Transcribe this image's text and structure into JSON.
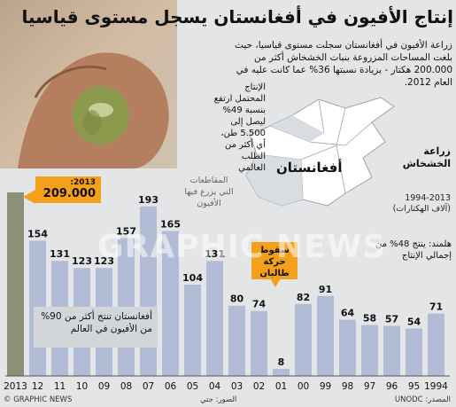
{
  "title": "إنتاج الأفيون في أفغانستان يسجل مستوى قياسيا",
  "intro_text": "زراعة الأفيون في أفغانستان سجلت مستوى قياسيا، حيث بلغت المساحات المزروعة بنبات الخشخاش أكثر من 200.000 هكتار - بزيادة نسبتها 36% عما كانت عليه في العام 2012.",
  "potential_text": "الإنتاج المحتمل ارتفع بنسبة 49% ليصل إلى 5.500 طن، أي أكثر من الطلب العالمي",
  "map_label": "أفغانستان",
  "regions_label": "المقاطعات التي يزرع فيها الأفيون",
  "cultivation_title": "زراعة الخشخاش",
  "cultivation_years": "1994-2013",
  "cultivation_unit": "(آلاف الهكتارات)",
  "helmand_note": "هلمند: ينتج 48% من إجمالي الإنتاج",
  "callout_2013_year": "2013:",
  "callout_2013_value": "209.000",
  "taliban_note": "سقوط حركة طالبان",
  "global_note": "أفغانستان تنتج أكثر من 90% من الأفيون في العالم",
  "source_label": "المصدر: UNODC",
  "photo_credit": "الصور: جتي",
  "copyright": "© GRAPHIC NEWS",
  "watermark": "GRAPHIC NEWS",
  "colors": {
    "bar": "#b3bcd6",
    "bar_highlight": "#8a9178",
    "callout": "#f5a01a",
    "text_white": "#ffffff"
  },
  "chart_data": {
    "type": "bar",
    "title": "زراعة الخشخاش",
    "ylabel": "(آلاف الهكتارات)",
    "categories": [
      "2013",
      "12",
      "11",
      "10",
      "09",
      "08",
      "07",
      "06",
      "05",
      "04",
      "03",
      "02",
      "01",
      "00",
      "99",
      "98",
      "97",
      "96",
      "95",
      "1994"
    ],
    "values": [
      209,
      154,
      131,
      123,
      123,
      157,
      193,
      165,
      104,
      131,
      80,
      74,
      8,
      82,
      91,
      64,
      58,
      57,
      54,
      71
    ],
    "labels": [
      "",
      "154",
      "131",
      "123",
      "123",
      "157",
      "193",
      "165",
      "104",
      "131",
      "80",
      "74",
      "8",
      "82",
      "91",
      "64",
      "58",
      "57",
      "54",
      "71"
    ],
    "ylim": [
      0,
      215
    ]
  }
}
